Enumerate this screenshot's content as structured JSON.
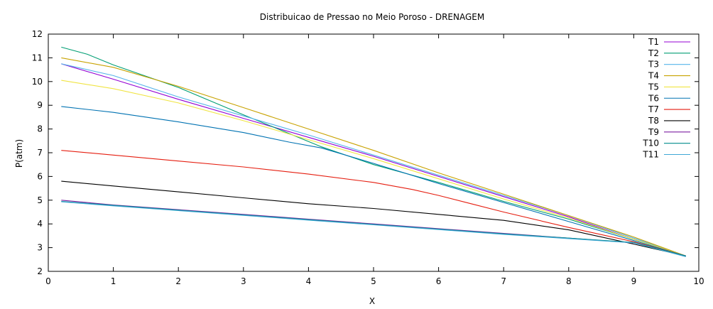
{
  "chart_data": {
    "type": "line",
    "title": "Distribuicao de Pressao no Meio Poroso - DRENAGEM",
    "xlabel": "X",
    "ylabel": "P(atm)",
    "xlim": [
      0,
      10
    ],
    "ylim": [
      2,
      12
    ],
    "xticks": [
      0,
      1,
      2,
      3,
      4,
      5,
      6,
      7,
      8,
      9,
      10
    ],
    "yticks": [
      2,
      3,
      4,
      5,
      6,
      7,
      8,
      9,
      10,
      11,
      12
    ],
    "grid": false,
    "legend": "top-right",
    "series": [
      {
        "name": "T1",
        "color": "#9400d3",
        "x": [
          0.2,
          1.0,
          2.0,
          3.0,
          4.0,
          5.0,
          6.0,
          7.0,
          8.0,
          9.0,
          9.8
        ],
        "y": [
          10.75,
          10.1,
          9.25,
          8.45,
          7.65,
          6.85,
          6.0,
          5.15,
          4.3,
          3.35,
          2.65
        ]
      },
      {
        "name": "T2",
        "color": "#009e73",
        "x": [
          0.2,
          0.6,
          1.0,
          2.0,
          3.0,
          4.2,
          5.0,
          6.0,
          7.0,
          8.0,
          9.0,
          9.8
        ],
        "y": [
          11.45,
          11.15,
          10.7,
          9.75,
          8.6,
          7.25,
          6.5,
          5.75,
          4.95,
          4.2,
          3.35,
          2.65
        ]
      },
      {
        "name": "T3",
        "color": "#56b4e9",
        "x": [
          0.2,
          1.0,
          2.0,
          3.0,
          4.0,
          5.0,
          6.0,
          7.0,
          8.0,
          9.0,
          9.8
        ],
        "y": [
          10.75,
          10.25,
          9.35,
          8.55,
          7.75,
          6.9,
          6.05,
          5.2,
          4.35,
          3.4,
          2.65
        ]
      },
      {
        "name": "T4",
        "color": "#c8a200",
        "x": [
          0.2,
          1.0,
          2.0,
          3.0,
          4.0,
          5.0,
          6.0,
          7.0,
          8.0,
          9.0,
          9.8
        ],
        "y": [
          11.0,
          10.6,
          9.8,
          8.9,
          8.0,
          7.1,
          6.15,
          5.25,
          4.35,
          3.45,
          2.65
        ]
      },
      {
        "name": "T5",
        "color": "#f0e442",
        "x": [
          0.2,
          1.0,
          2.0,
          3.0,
          4.0,
          5.0,
          6.0,
          7.0,
          8.0,
          9.0,
          9.8
        ],
        "y": [
          10.05,
          9.7,
          9.1,
          8.35,
          7.55,
          6.75,
          5.9,
          5.05,
          4.25,
          3.35,
          2.65
        ]
      },
      {
        "name": "T6",
        "color": "#0072b2",
        "x": [
          0.2,
          1.0,
          2.0,
          3.0,
          3.7,
          4.2,
          5.0,
          6.0,
          7.0,
          8.0,
          9.0,
          9.8
        ],
        "y": [
          8.95,
          8.7,
          8.3,
          7.85,
          7.45,
          7.2,
          6.55,
          5.7,
          4.9,
          4.1,
          3.3,
          2.65
        ]
      },
      {
        "name": "T7",
        "color": "#e51e10",
        "x": [
          0.2,
          1.0,
          2.0,
          3.0,
          4.0,
          5.0,
          5.6,
          6.0,
          6.5,
          7.0,
          8.0,
          9.0,
          9.8
        ],
        "y": [
          7.1,
          6.9,
          6.65,
          6.4,
          6.1,
          5.75,
          5.45,
          5.2,
          4.85,
          4.5,
          3.85,
          3.25,
          2.65
        ]
      },
      {
        "name": "T8",
        "color": "#000000",
        "x": [
          0.2,
          1.0,
          2.0,
          3.0,
          4.0,
          5.0,
          6.0,
          7.0,
          8.0,
          9.0,
          9.8
        ],
        "y": [
          5.8,
          5.6,
          5.35,
          5.1,
          4.85,
          4.65,
          4.4,
          4.15,
          3.75,
          3.15,
          2.65
        ]
      },
      {
        "name": "T9",
        "color": "#7b1fa2",
        "x": [
          0.2,
          1.0,
          2.0,
          3.0,
          4.0,
          5.0,
          6.0,
          7.0,
          8.0,
          9.0,
          9.8
        ],
        "y": [
          5.0,
          4.8,
          4.6,
          4.4,
          4.2,
          4.0,
          3.8,
          3.6,
          3.4,
          3.2,
          2.65
        ]
      },
      {
        "name": "T10",
        "color": "#008b8b",
        "x": [
          0.2,
          1.0,
          2.0,
          3.0,
          4.0,
          5.0,
          6.0,
          7.0,
          8.0,
          9.0,
          9.8
        ],
        "y": [
          4.95,
          4.78,
          4.58,
          4.38,
          4.18,
          3.98,
          3.78,
          3.58,
          3.4,
          3.22,
          2.65
        ]
      },
      {
        "name": "T11",
        "color": "#3fa7d6",
        "x": [
          0.2,
          1.0,
          2.0,
          3.0,
          4.0,
          5.0,
          6.0,
          7.0,
          8.0,
          9.0,
          9.8
        ],
        "y": [
          4.93,
          4.76,
          4.56,
          4.36,
          4.16,
          3.96,
          3.76,
          3.56,
          3.38,
          3.2,
          2.62
        ]
      }
    ]
  }
}
